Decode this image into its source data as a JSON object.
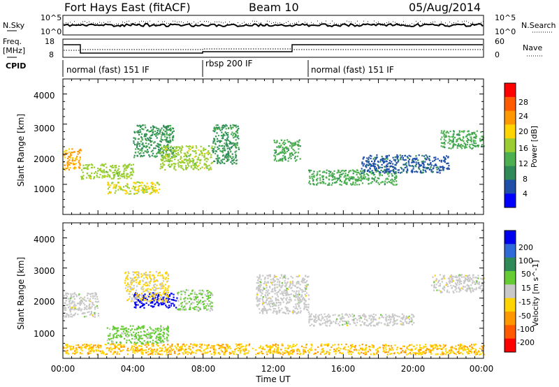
{
  "header": {
    "title": "Fort Hays East (fitACF)",
    "beam": "Beam 10",
    "date": "05/Aug/2014"
  },
  "noise_panel": {
    "left_label": "N.Sky",
    "left_ticks": [
      "10^5",
      "10^0"
    ],
    "right_ticks": [
      "10^5",
      "10^0"
    ],
    "right_label": "N.Search"
  },
  "freq_panel": {
    "left_label_line1": "Freq.",
    "left_label_line2": "[MHz]",
    "left_ticks": [
      "18",
      "8"
    ],
    "right_ticks": [
      "60",
      "0"
    ],
    "right_label": "Nave"
  },
  "cpid": {
    "label": "CPID",
    "segments": [
      {
        "name": "normal (fast) 151 IF",
        "start_h": 0,
        "end_h": 8
      },
      {
        "name": "rbsp 200 IF",
        "start_h": 8,
        "end_h": 14
      },
      {
        "name": "normal (fast) 151 IF",
        "start_h": 14,
        "end_h": 24
      }
    ]
  },
  "axes": {
    "y_label": "Slant Range [km]",
    "y_ticks": [
      "4000",
      "3000",
      "2000",
      "1000"
    ],
    "x_label": "Time UT",
    "x_ticks": [
      "00:00",
      "04:00",
      "08:00",
      "12:00",
      "16:00",
      "20:00",
      "00:00"
    ]
  },
  "power_colorbar": {
    "label": "Power [dB]",
    "ticks": [
      "28",
      "24",
      "20",
      "16",
      "12",
      "8",
      "4"
    ],
    "colors": [
      "#ff0000",
      "#ff5a00",
      "#ff9800",
      "#ffd400",
      "#9acd32",
      "#4caf50",
      "#2e8b57",
      "#1f4fa8",
      "#0000ff"
    ]
  },
  "velocity_colorbar": {
    "label": "Velocity [m s^-1]",
    "ticks": [
      "200",
      "100",
      "50",
      "15",
      "-15",
      "-50",
      "-100",
      "-200"
    ],
    "colors": [
      "#0000ee",
      "#2e6bd8",
      "#2e8b57",
      "#66cc33",
      "#c8c8c8",
      "#ffd400",
      "#ff9800",
      "#ff5a00",
      "#ff0000"
    ]
  },
  "chart_data": [
    {
      "type": "heatmap",
      "title": "Power",
      "xlim": [
        0,
        24
      ],
      "ylim": [
        0,
        4500
      ],
      "colorbar_range": [
        0,
        32
      ],
      "regions": [
        {
          "t0": 0.0,
          "t1": 1.0,
          "r0": 1500,
          "r1": 2200,
          "value": 22
        },
        {
          "t0": 1.0,
          "t1": 4.0,
          "r0": 1200,
          "r1": 1700,
          "value": 16
        },
        {
          "t0": 2.5,
          "t1": 5.5,
          "r0": 700,
          "r1": 1100,
          "value": 18
        },
        {
          "t0": 4.0,
          "t1": 6.3,
          "r0": 1900,
          "r1": 3000,
          "value": 10
        },
        {
          "t0": 5.5,
          "t1": 8.5,
          "r0": 1500,
          "r1": 2300,
          "value": 16
        },
        {
          "t0": 8.5,
          "t1": 10.0,
          "r0": 1700,
          "r1": 3000,
          "value": 10
        },
        {
          "t0": 12.0,
          "t1": 13.5,
          "r0": 1800,
          "r1": 2500,
          "value": 12
        },
        {
          "t0": 14.0,
          "t1": 19.0,
          "r0": 1000,
          "r1": 1500,
          "value": 12
        },
        {
          "t0": 17.0,
          "t1": 22.0,
          "r0": 1400,
          "r1": 2000,
          "value": 6
        },
        {
          "t0": 21.5,
          "t1": 24.0,
          "r0": 2200,
          "r1": 2800,
          "value": 12
        }
      ]
    },
    {
      "type": "heatmap",
      "title": "Velocity",
      "xlim": [
        0,
        24
      ],
      "ylim": [
        0,
        4500
      ],
      "colorbar_range": [
        -200,
        200
      ],
      "regions": [
        {
          "t0": 0.0,
          "t1": 2.0,
          "r0": 1400,
          "r1": 2200,
          "value": 0
        },
        {
          "t0": 2.5,
          "t1": 6.0,
          "r0": 500,
          "r1": 1100,
          "value": 40
        },
        {
          "t0": 4.0,
          "t1": 6.5,
          "r0": 1700,
          "r1": 2200,
          "value": 200
        },
        {
          "t0": 6.5,
          "t1": 8.5,
          "r0": 1600,
          "r1": 2300,
          "value": 30
        },
        {
          "t0": 3.5,
          "t1": 6.0,
          "r0": 1900,
          "r1": 2900,
          "value": -30
        },
        {
          "t0": 11.0,
          "t1": 14.0,
          "r0": 1500,
          "r1": 2800,
          "value": 0
        },
        {
          "t0": 14.0,
          "t1": 20.0,
          "r0": 1100,
          "r1": 1500,
          "value": 0
        },
        {
          "t0": 21.0,
          "t1": 24.0,
          "r0": 2200,
          "r1": 2800,
          "value": 0
        },
        {
          "t0": 0.0,
          "t1": 24.0,
          "r0": 150,
          "r1": 500,
          "value": -60
        }
      ]
    }
  ]
}
